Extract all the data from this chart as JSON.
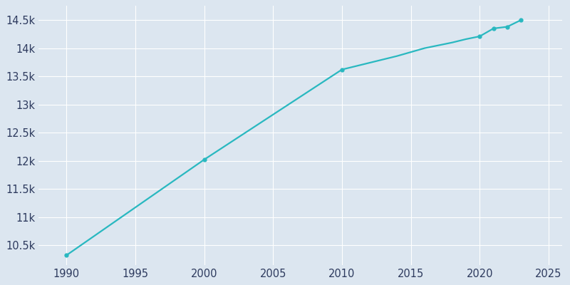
{
  "years": [
    1990,
    2000,
    2010,
    2011,
    2012,
    2013,
    2014,
    2015,
    2016,
    2017,
    2018,
    2019,
    2020,
    2021,
    2022,
    2023
  ],
  "population": [
    10320,
    12020,
    13620,
    13680,
    13740,
    13800,
    13860,
    13930,
    14000,
    14050,
    14100,
    14160,
    14210,
    14350,
    14380,
    14500
  ],
  "line_color": "#29b8c0",
  "bg_color": "#dce6f0",
  "plot_bg_color": "#dce6f0",
  "tick_color": "#2d3a5e",
  "grid_color": "#ffffff",
  "marker_years": [
    1990,
    2000,
    2010,
    2020,
    2021,
    2022,
    2023
  ],
  "marker_values": [
    10320,
    12020,
    13620,
    14210,
    14350,
    14380,
    14500
  ],
  "xlim": [
    1988.0,
    2026.0
  ],
  "ylim": [
    10150,
    14750
  ],
  "xticks": [
    1990,
    1995,
    2000,
    2005,
    2010,
    2015,
    2020,
    2025
  ],
  "yticks": [
    10500,
    11000,
    11500,
    12000,
    12500,
    13000,
    13500,
    14000,
    14500
  ],
  "ytick_labels": [
    "10.5k",
    "11k",
    "11.5k",
    "12k",
    "12.5k",
    "13k",
    "13.5k",
    "14k",
    "14.5k"
  ],
  "figsize": [
    8.0,
    4.0
  ],
  "dpi": 100
}
